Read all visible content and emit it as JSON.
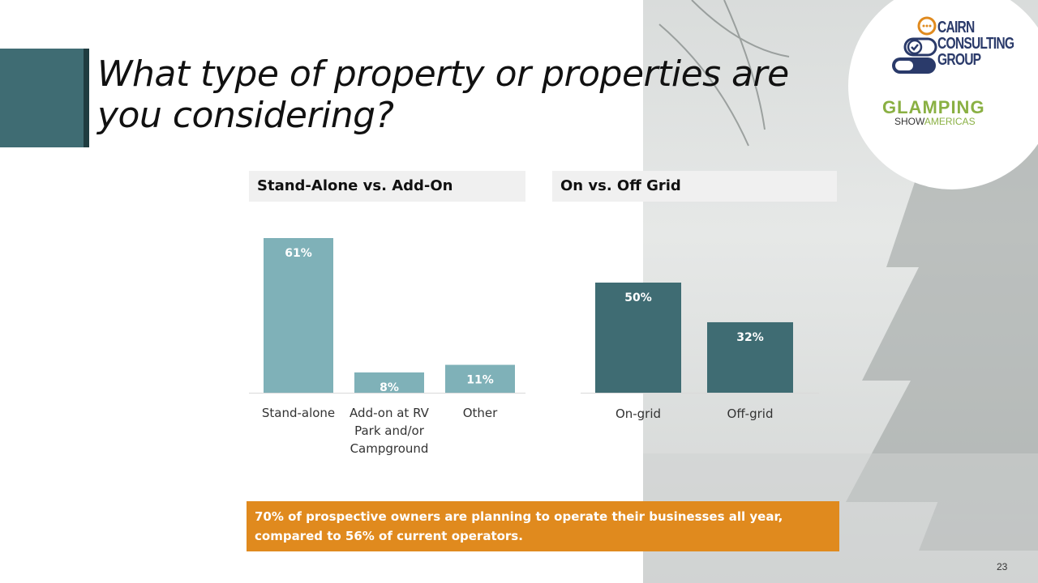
{
  "title": "What type of property or properties are you considering?",
  "logos": {
    "cairn_lines": [
      "CAIRN",
      "CONSULTING",
      "GROUP"
    ],
    "glamping": "GLAMPING",
    "glamping_sub_a": "SHOW",
    "glamping_sub_b": "AMERICAS"
  },
  "chart_data": [
    {
      "type": "bar",
      "title": "Stand-Alone vs. Add-On",
      "categories": [
        [
          "Stand-alone"
        ],
        [
          "Add-on at RV",
          "Park and/or",
          "Campground"
        ],
        [
          "Other"
        ]
      ],
      "values": [
        61,
        8,
        11
      ],
      "labels": [
        "61%",
        "8%",
        "11%"
      ],
      "ylim": [
        0,
        61
      ],
      "color": "#7fb1b8"
    },
    {
      "type": "bar",
      "title": "On vs. Off Grid",
      "categories": [
        [
          "On-grid"
        ],
        [
          "Off-grid"
        ]
      ],
      "values": [
        50,
        32
      ],
      "labels": [
        "50%",
        "32%"
      ],
      "ylim": [
        0,
        50
      ],
      "color": "#3f6c73"
    }
  ],
  "callout": "70% of prospective owners are planning to operate their businesses all year, compared to 56% of current operators.",
  "page_number": "23"
}
